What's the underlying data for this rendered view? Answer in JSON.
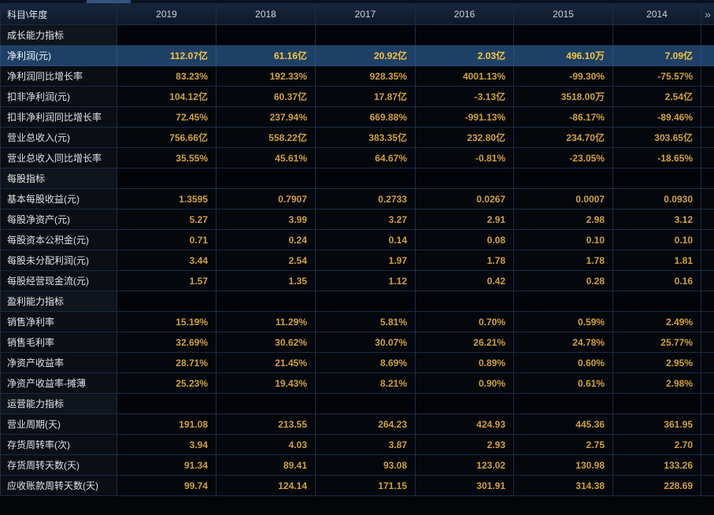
{
  "colors": {
    "background": "#04060a",
    "grid_line": "#1b2c49",
    "header_bg": "#14223a",
    "label_text": "#dfe3e8",
    "value_text": "#d2a23a",
    "selected_row_bg": "#1f4066",
    "selected_value_text": "#f5c53f",
    "section_text": "#e6eaef"
  },
  "header": {
    "corner_label": "科目\\年度",
    "years": [
      "2019",
      "2018",
      "2017",
      "2016",
      "2015",
      "2014"
    ],
    "more_icon": "»"
  },
  "table": {
    "rows": [
      {
        "type": "section",
        "label": "成长能力指标"
      },
      {
        "type": "data",
        "label": "净利润(元)",
        "selected": true,
        "values": [
          "112.07亿",
          "61.16亿",
          "20.92亿",
          "2.03亿",
          "496.10万",
          "7.09亿"
        ]
      },
      {
        "type": "data",
        "label": "净利润同比增长率",
        "values": [
          "83.23%",
          "192.33%",
          "928.35%",
          "4001.13%",
          "-99.30%",
          "-75.57%"
        ]
      },
      {
        "type": "data",
        "label": "扣非净利润(元)",
        "values": [
          "104.12亿",
          "60.37亿",
          "17.87亿",
          "-3.13亿",
          "3518.00万",
          "2.54亿"
        ]
      },
      {
        "type": "data",
        "label": "扣非净利润同比增长率",
        "values": [
          "72.45%",
          "237.94%",
          "669.88%",
          "-991.13%",
          "-86.17%",
          "-89.46%"
        ]
      },
      {
        "type": "data",
        "label": "营业总收入(元)",
        "values": [
          "756.66亿",
          "558.22亿",
          "383.35亿",
          "232.80亿",
          "234.70亿",
          "303.65亿"
        ]
      },
      {
        "type": "data",
        "label": "营业总收入同比增长率",
        "values": [
          "35.55%",
          "45.61%",
          "64.67%",
          "-0.81%",
          "-23.05%",
          "-18.65%"
        ]
      },
      {
        "type": "section",
        "label": "每股指标"
      },
      {
        "type": "data",
        "label": "基本每股收益(元)",
        "values": [
          "1.3595",
          "0.7907",
          "0.2733",
          "0.0267",
          "0.0007",
          "0.0930"
        ]
      },
      {
        "type": "data",
        "label": "每股净资产(元)",
        "values": [
          "5.27",
          "3.99",
          "3.27",
          "2.91",
          "2.98",
          "3.12"
        ]
      },
      {
        "type": "data",
        "label": "每股资本公积金(元)",
        "values": [
          "0.71",
          "0.24",
          "0.14",
          "0.08",
          "0.10",
          "0.10"
        ]
      },
      {
        "type": "data",
        "label": "每股未分配利润(元)",
        "values": [
          "3.44",
          "2.54",
          "1.97",
          "1.78",
          "1.78",
          "1.81"
        ]
      },
      {
        "type": "data",
        "label": "每股经营现金流(元)",
        "values": [
          "1.57",
          "1.35",
          "1.12",
          "0.42",
          "0.28",
          "0.16"
        ]
      },
      {
        "type": "section",
        "label": "盈利能力指标"
      },
      {
        "type": "data",
        "label": "销售净利率",
        "values": [
          "15.19%",
          "11.29%",
          "5.81%",
          "0.70%",
          "0.59%",
          "2.49%"
        ]
      },
      {
        "type": "data",
        "label": "销售毛利率",
        "values": [
          "32.69%",
          "30.62%",
          "30.07%",
          "26.21%",
          "24.78%",
          "25.77%"
        ]
      },
      {
        "type": "data",
        "label": "净资产收益率",
        "values": [
          "28.71%",
          "21.45%",
          "8.69%",
          "0.89%",
          "0.60%",
          "2.95%"
        ]
      },
      {
        "type": "data",
        "label": "净资产收益率-摊薄",
        "values": [
          "25.23%",
          "19.43%",
          "8.21%",
          "0.90%",
          "0.61%",
          "2.98%"
        ]
      },
      {
        "type": "section",
        "label": "运营能力指标"
      },
      {
        "type": "data",
        "label": "营业周期(天)",
        "values": [
          "191.08",
          "213.55",
          "264.23",
          "424.93",
          "445.36",
          "361.95"
        ]
      },
      {
        "type": "data",
        "label": "存货周转率(次)",
        "values": [
          "3.94",
          "4.03",
          "3.87",
          "2.93",
          "2.75",
          "2.70"
        ]
      },
      {
        "type": "data",
        "label": "存货周转天数(天)",
        "values": [
          "91.34",
          "89.41",
          "93.08",
          "123.02",
          "130.98",
          "133.26"
        ]
      },
      {
        "type": "data",
        "label": "应收账款周转天数(天)",
        "values": [
          "99.74",
          "124.14",
          "171.15",
          "301.91",
          "314.38",
          "228.69"
        ]
      }
    ]
  }
}
